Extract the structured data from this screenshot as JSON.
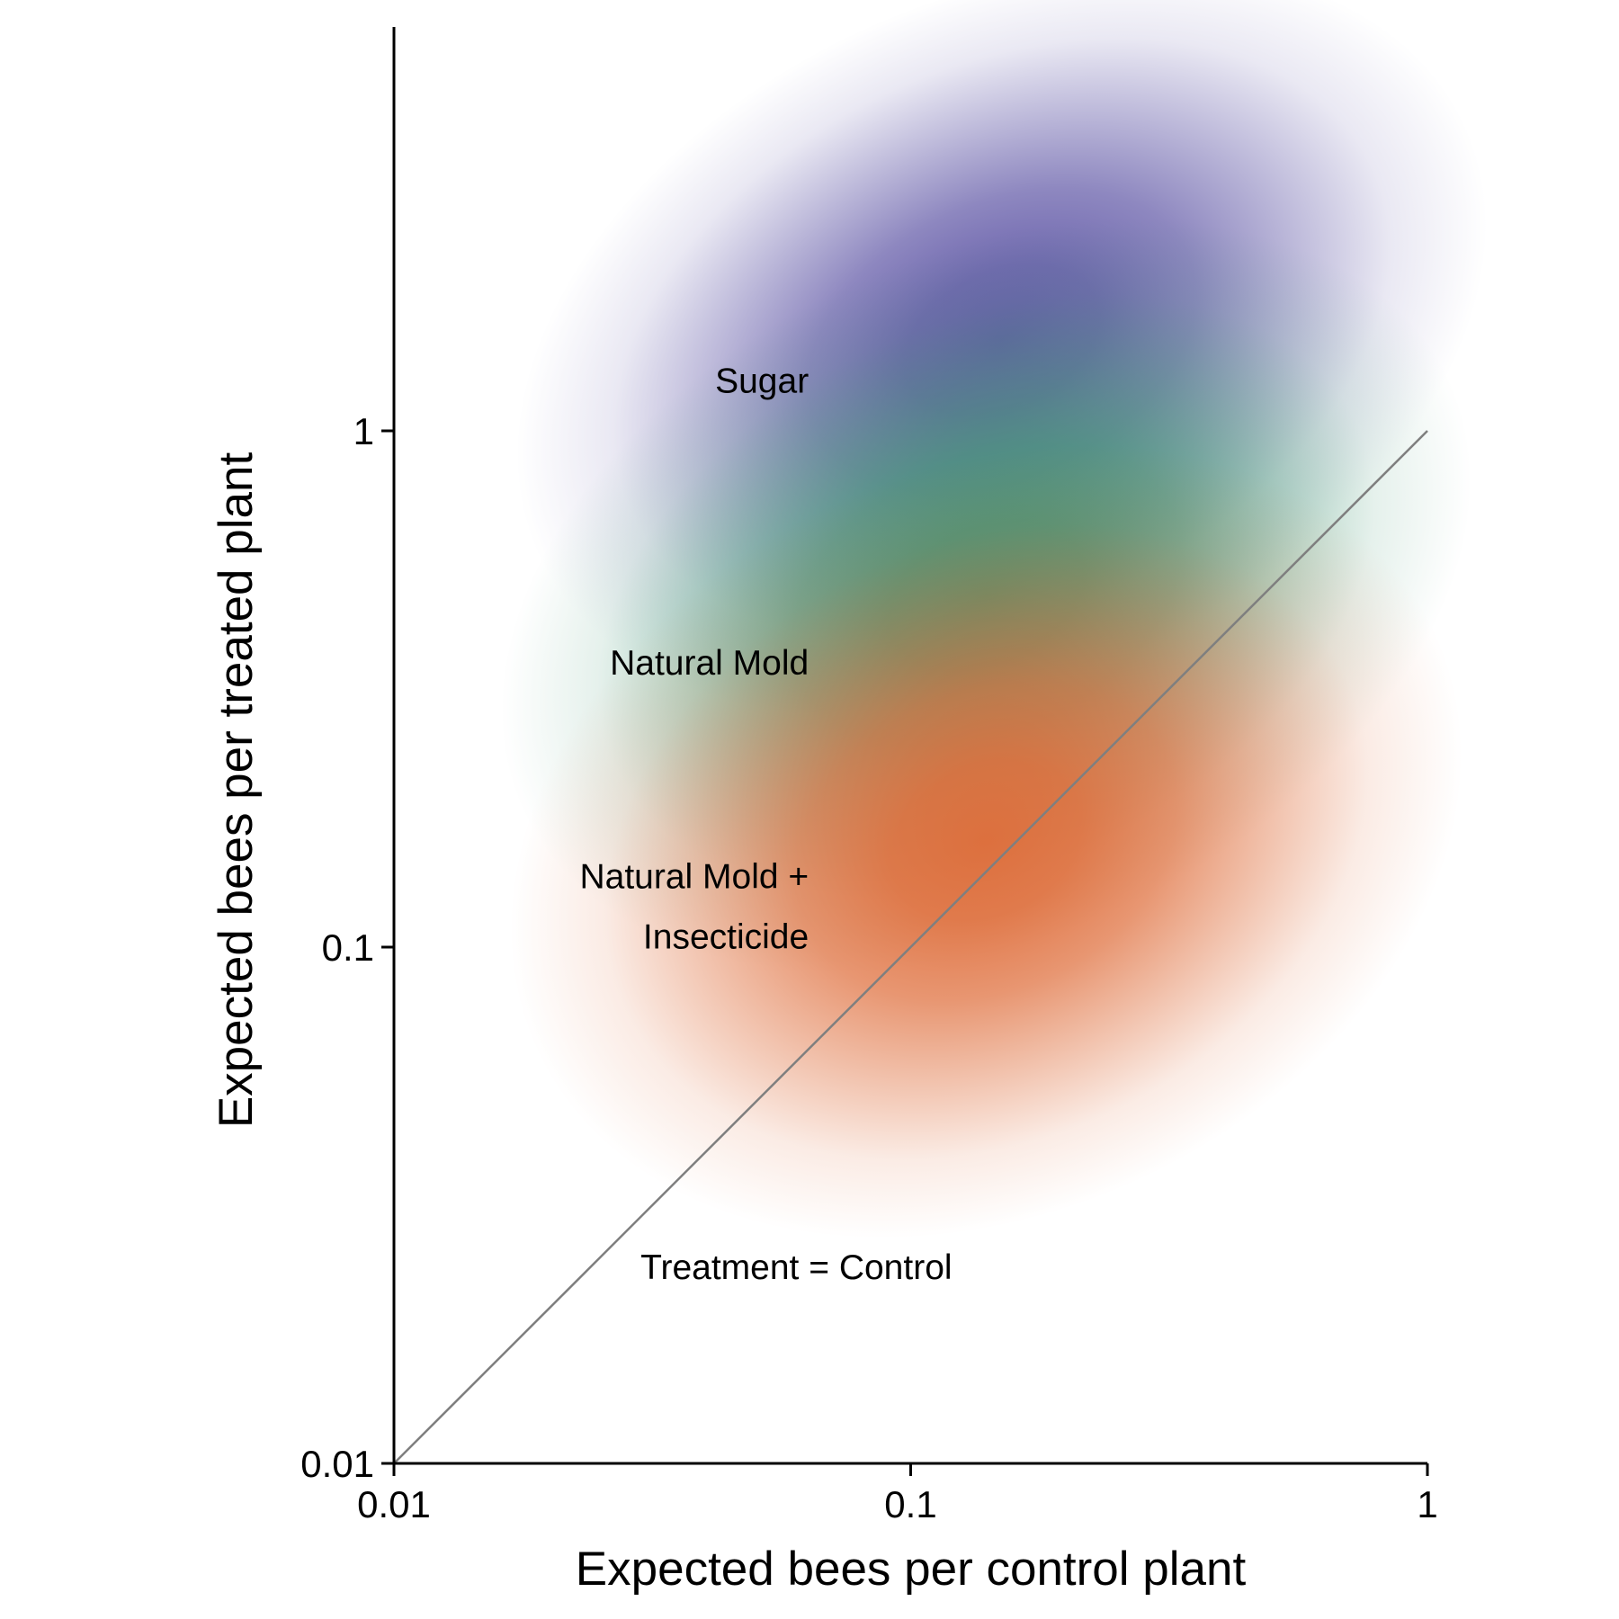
{
  "chart_data": {
    "type": "heatmap",
    "subtype": "2d-density",
    "x_scale": "log",
    "y_scale": "log",
    "xlabel": "Expected bees per control plant",
    "ylabel": "Expected bees per treated plant",
    "xlim": [
      0.01,
      1
    ],
    "ylim": [
      0.01,
      4.6
    ],
    "x_ticks": [
      0.01,
      0.1,
      1
    ],
    "y_ticks": [
      0.01,
      0.1,
      1
    ],
    "x_tick_labels": [
      "0.01",
      "0.1",
      "1"
    ],
    "y_tick_labels": [
      "0.01",
      "0.1",
      "1"
    ],
    "grid": false,
    "series": [
      {
        "name": "Sugar",
        "label_lines": [
          "Sugar"
        ],
        "color": "#5e55a5",
        "center": [
          0.15,
          1.5
        ],
        "spread_log10": [
          0.33,
          0.22
        ],
        "peak_opacity": 0.95
      },
      {
        "name": "Natural Mold",
        "label_lines": [
          "Natural Mold"
        ],
        "color": "#3e9570",
        "center": [
          0.14,
          0.48
        ],
        "spread_log10": [
          0.33,
          0.22
        ],
        "peak_opacity": 0.95
      },
      {
        "name": "Natural Mold + Insecticide",
        "label_lines": [
          "Natural Mold +",
          "Insecticide"
        ],
        "color": "#de6a36",
        "center": [
          0.14,
          0.16
        ],
        "spread_log10": [
          0.32,
          0.24
        ],
        "peak_opacity": 0.95
      }
    ],
    "reference_line": {
      "label": "Treatment = Control",
      "from": [
        0.01,
        0.01
      ],
      "to": [
        1,
        1
      ],
      "color": "#7f7f7f"
    },
    "annotation_positions_data": {
      "Sugar": [
        0.0635,
        1.25
      ],
      "Natural Mold": [
        0.0635,
        0.355
      ],
      "Natural Mold + Insecticide": [
        0.0635,
        0.12
      ],
      "Treatment = Control": [
        0.03,
        0.024
      ]
    }
  }
}
